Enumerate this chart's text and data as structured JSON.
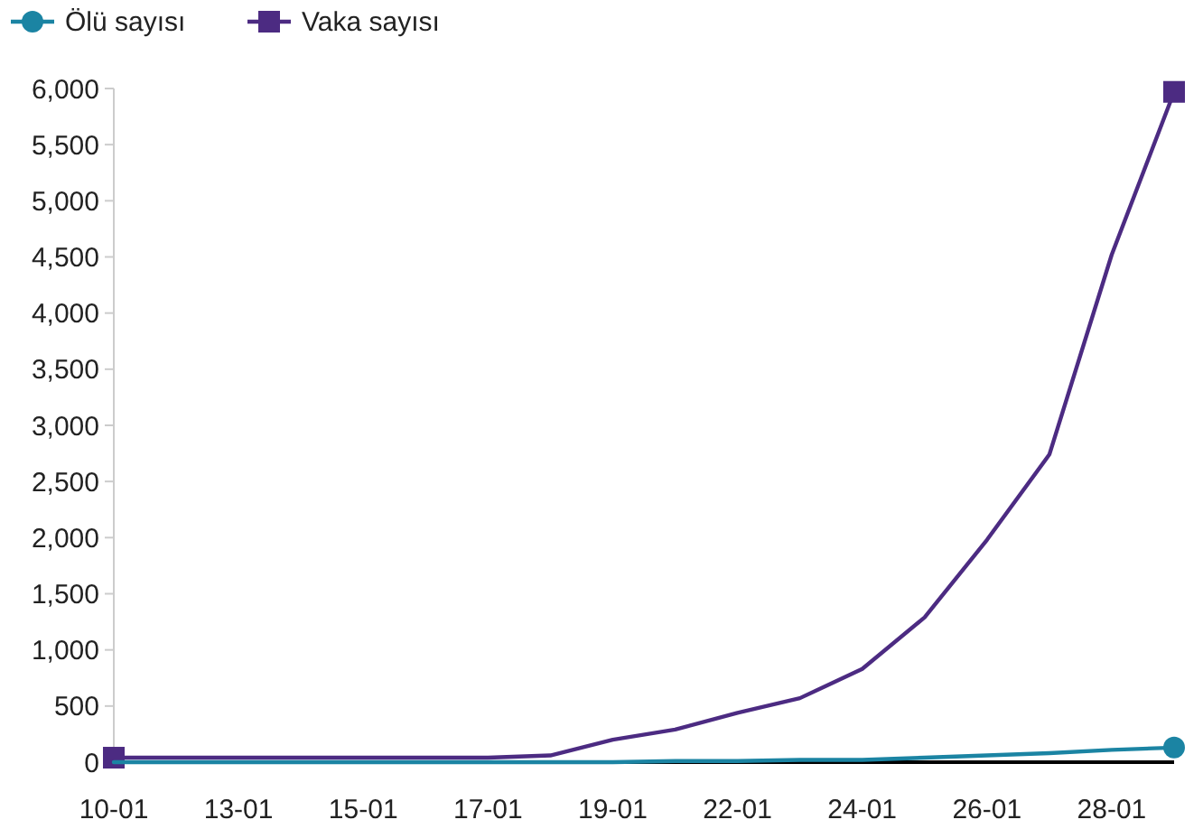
{
  "chart_data": {
    "type": "line",
    "categories": [
      "10-01",
      null,
      "13-01",
      null,
      "15-01",
      null,
      "17-01",
      null,
      "19-01",
      null,
      "22-01",
      null,
      "24-01",
      null,
      "26-01",
      null,
      "28-01",
      null
    ],
    "series": [
      {
        "name": "Ölü sayısı",
        "color": "#1b84a3",
        "values": [
          0,
          0,
          0,
          0,
          0,
          0,
          0,
          0,
          0,
          10,
          10,
          20,
          20,
          40,
          60,
          80,
          110,
          130
        ]
      },
      {
        "name": "Vaka sayısı",
        "color": "#4c2b82",
        "values": [
          40,
          40,
          40,
          40,
          40,
          40,
          40,
          60,
          200,
          290,
          440,
          570,
          830,
          1290,
          1980,
          2740,
          4520,
          5970
        ]
      }
    ],
    "ylim": [
      0,
      6000
    ],
    "yticks": [
      0,
      500,
      {
        "value": 1000,
        "label": "1,000"
      },
      {
        "value": 1500,
        "label": "1,500"
      },
      {
        "value": 2000,
        "label": "2,000"
      },
      {
        "value": 2500,
        "label": "2,500"
      },
      {
        "value": 3000,
        "label": "3,000"
      },
      {
        "value": 3500,
        "label": "3,500"
      },
      {
        "value": 4000,
        "label": "4,000"
      },
      {
        "value": 4500,
        "label": "4,500"
      },
      {
        "value": 5000,
        "label": "5,000"
      },
      {
        "value": 5500,
        "label": "5,500"
      },
      {
        "value": 6000,
        "label": "6,000"
      }
    ],
    "grid": false,
    "legend": "top left",
    "line_style": "solid"
  }
}
